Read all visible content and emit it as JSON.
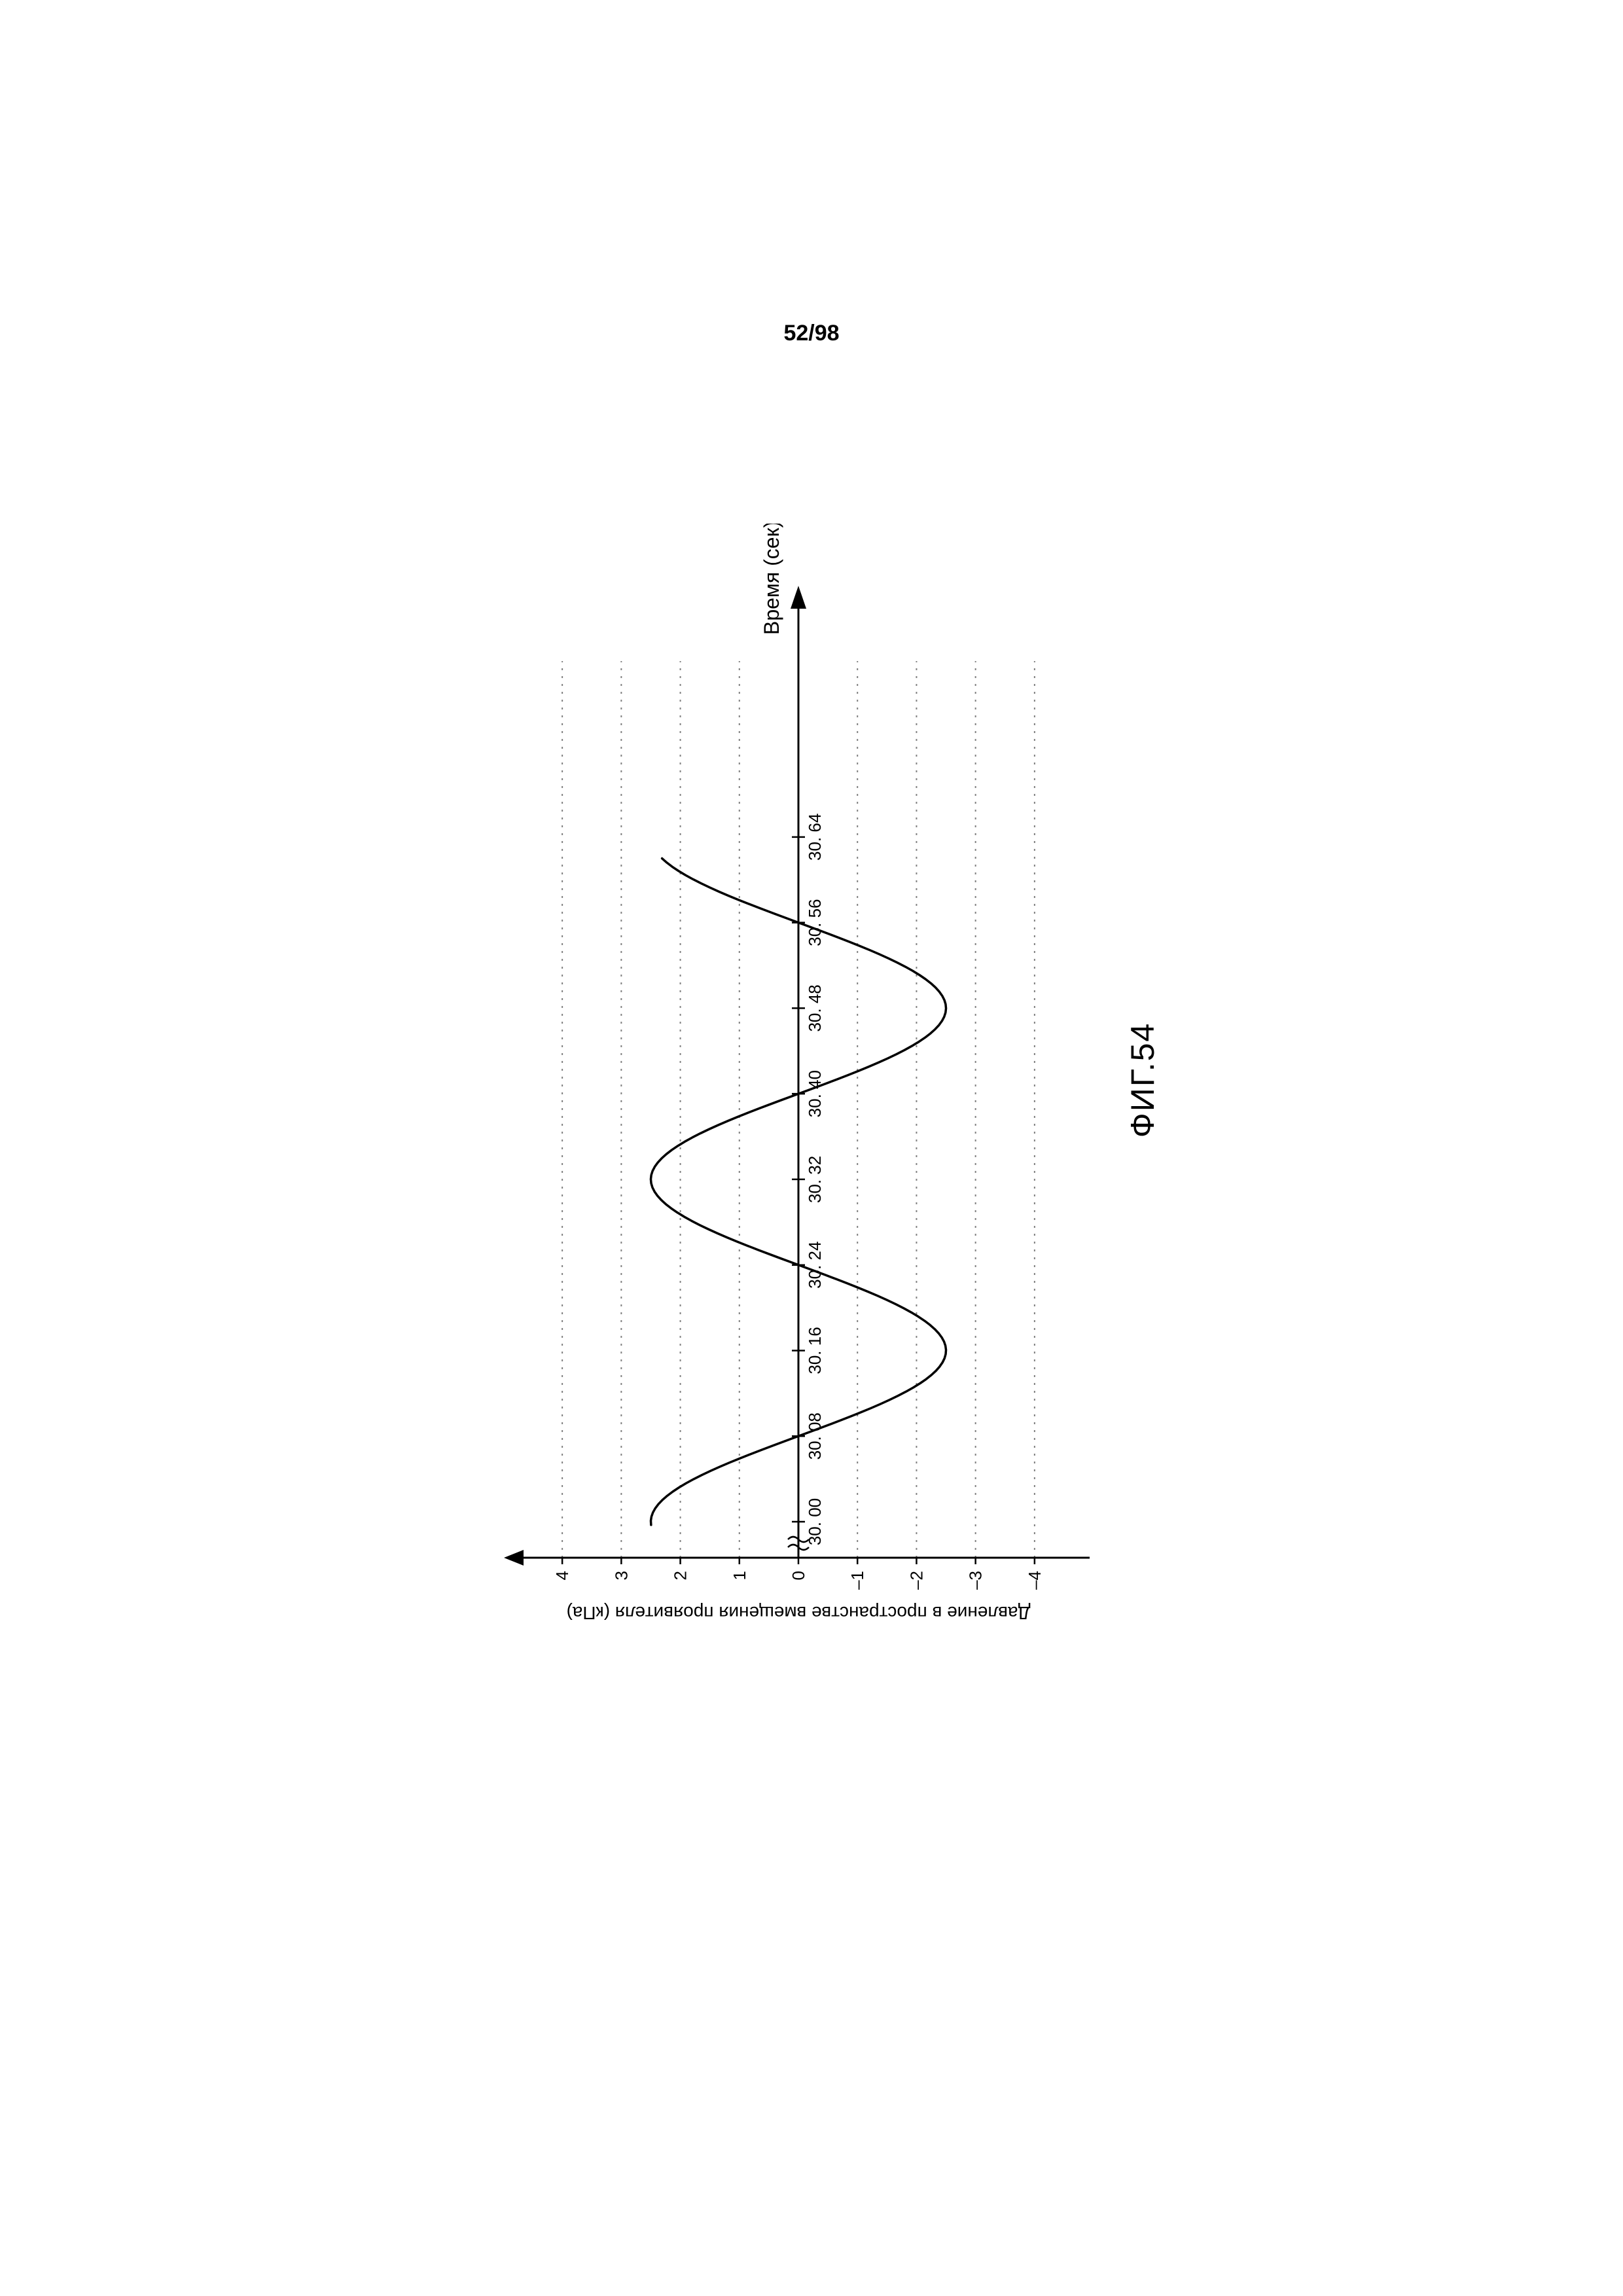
{
  "page_number": "52/98",
  "figure_label": "ФИГ.54",
  "chart": {
    "type": "line",
    "x_axis_label": "Время (сек)",
    "y_axis_label": "Давление в пространстве вмещения проявителя (кПа)",
    "font_family": "Arial",
    "axis_label_fontsize": 28,
    "tick_fontsize": 26,
    "background_color": "#ffffff",
    "axis_color": "#000000",
    "grid_color": "#808080",
    "line_color": "#000000",
    "line_width": 3.5,
    "axis_line_width": 3,
    "y": {
      "min": -4.6,
      "max": 4.6,
      "ticks": [
        -4,
        -3,
        -2,
        -1,
        0,
        1,
        2,
        3,
        4
      ],
      "tick_labels": [
        "–4",
        "–3",
        "–2",
        "–1",
        "0",
        "1",
        "2",
        "3",
        "4"
      ]
    },
    "x": {
      "start_after_break": 30.0,
      "end": 30.72,
      "ticks": [
        30.0,
        30.08,
        30.16,
        30.24,
        30.32,
        30.4,
        30.48,
        30.56,
        30.64
      ],
      "tick_labels": [
        "30. 00",
        "30. 08",
        "30. 16",
        "30. 24",
        "30. 32",
        "30. 40",
        "30. 48",
        "30. 56",
        "30. 64"
      ],
      "grid_extends_to": 30.78
    },
    "axis_break": true,
    "series": {
      "amplitude": 2.5,
      "period": 0.64,
      "phase_at_x0": 1.5708,
      "x_start": 29.997,
      "x_end": 30.62,
      "samples": 160
    }
  }
}
